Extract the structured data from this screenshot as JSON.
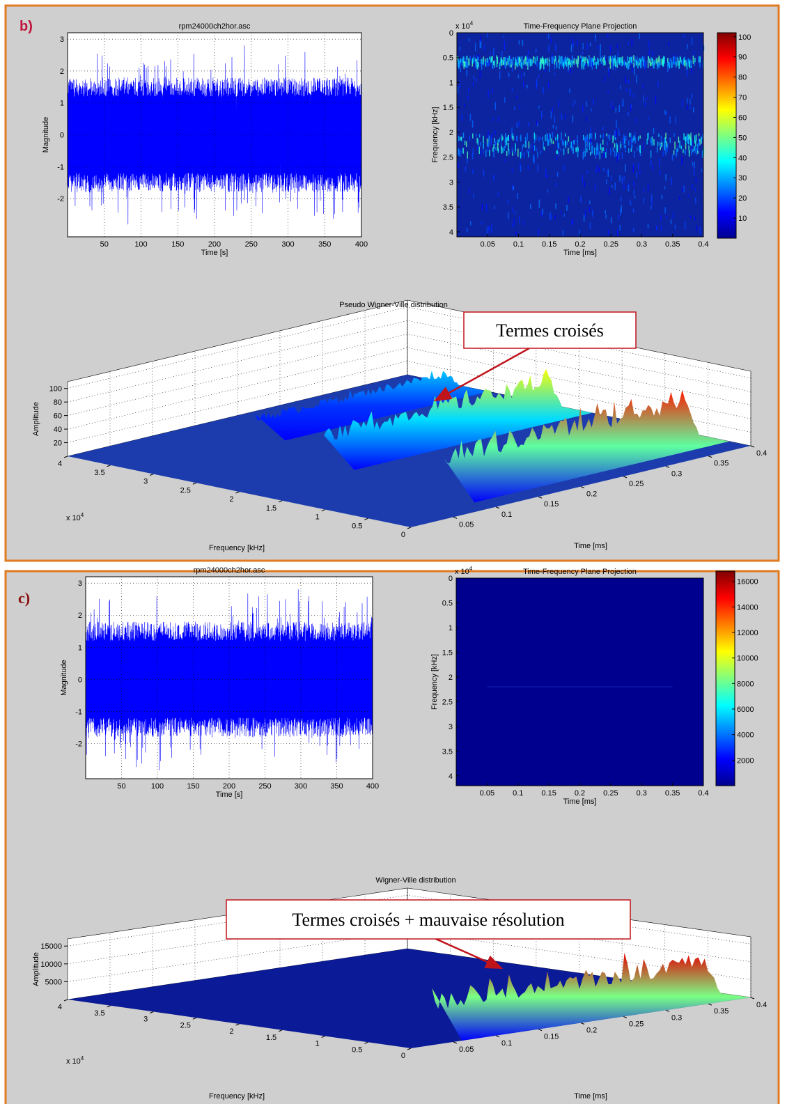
{
  "panels": [
    {
      "label": "b)",
      "signal": {
        "title": "rpm24000ch2hor.asc",
        "xlabel": "Time [s]",
        "ylabel": "Magnitude",
        "xlim": [
          0,
          400
        ],
        "ylim": [
          -3.2,
          3.2
        ],
        "xticks": [
          50,
          100,
          150,
          200,
          250,
          300,
          350,
          400
        ],
        "yticks": [
          -2,
          -1,
          0,
          1,
          2,
          3
        ]
      },
      "projection": {
        "title": "Time-Frequency Plane Projection",
        "xlabel": "Time [ms]",
        "ylabel": "Frequency [kHz]",
        "y_multiplier": {
          "base": "x 10",
          "exponent": "4"
        },
        "xlim": [
          0,
          0.4
        ],
        "ylim": [
          0,
          4.1
        ],
        "xticks": [
          0.05,
          0.1,
          0.15,
          0.2,
          0.25,
          0.3,
          0.35,
          0.4
        ],
        "yticks": [
          0,
          0.5,
          1,
          1.5,
          2,
          2.5,
          3,
          3.5,
          4
        ],
        "colorbar": {
          "clim": [
            0,
            102
          ],
          "ticks": [
            10,
            20,
            30,
            40,
            50,
            60,
            70,
            80,
            90,
            100
          ]
        }
      },
      "surface": {
        "title": "Pseudo Wigner-Ville distribution",
        "xlabel": "Frequency [kHz]",
        "ylabel": "Time [ms]",
        "zlabel": "Amplitude",
        "x_multiplier": {
          "base": "x 10",
          "exponent": "4"
        },
        "xlim": [
          0,
          4
        ],
        "ylim": [
          0,
          0.4
        ],
        "zlim": [
          0,
          110
        ],
        "xticks": [
          0,
          0.5,
          1,
          1.5,
          2,
          2.5,
          3,
          3.5,
          4
        ],
        "yticks": [
          0.05,
          0.1,
          0.15,
          0.2,
          0.25,
          0.3,
          0.35,
          0.4
        ],
        "zticks": [
          20,
          40,
          60,
          80,
          100
        ],
        "annotation": "Termes croisés"
      }
    },
    {
      "label": "c)",
      "signal": {
        "title": "rpm24000ch2hor.asc",
        "xlabel": "Time [s]",
        "ylabel": "Magnitude",
        "xlim": [
          0,
          400
        ],
        "ylim": [
          -3.1,
          3.2
        ],
        "xticks": [
          50,
          100,
          150,
          200,
          250,
          300,
          350,
          400
        ],
        "yticks": [
          -2,
          -1,
          0,
          1,
          2,
          3
        ]
      },
      "projection": {
        "title": "Time-Frequency Plane Projection",
        "xlabel": "Time [ms]",
        "ylabel": "Frequency [kHz]",
        "y_multiplier": {
          "base": "x 10",
          "exponent": "4"
        },
        "xlim": [
          0,
          0.4
        ],
        "ylim": [
          0,
          4.2
        ],
        "xticks": [
          0.05,
          0.1,
          0.15,
          0.2,
          0.25,
          0.3,
          0.35,
          0.4
        ],
        "yticks": [
          0,
          0.5,
          1,
          1.5,
          2,
          2.5,
          3,
          3.5,
          4
        ],
        "colorbar": {
          "clim": [
            0,
            16800
          ],
          "ticks": [
            2000,
            4000,
            6000,
            8000,
            10000,
            12000,
            14000,
            16000
          ]
        }
      },
      "surface": {
        "title": "Wigner-Ville distribution",
        "xlabel": "Frequency [kHz]",
        "ylabel": "Time [ms]",
        "zlabel": "Amplitude",
        "x_multiplier": {
          "base": "x 10",
          "exponent": "4"
        },
        "xlim": [
          0,
          4
        ],
        "ylim": [
          0,
          0.4
        ],
        "zlim": [
          0,
          17000
        ],
        "xticks": [
          0,
          0.5,
          1,
          1.5,
          2,
          2.5,
          3,
          3.5,
          4
        ],
        "yticks": [
          0.05,
          0.1,
          0.15,
          0.2,
          0.25,
          0.3,
          0.35,
          0.4
        ],
        "zticks": [
          5000,
          10000,
          15000
        ],
        "annotation": "Termes croisés + mauvaise résolution"
      }
    }
  ]
}
